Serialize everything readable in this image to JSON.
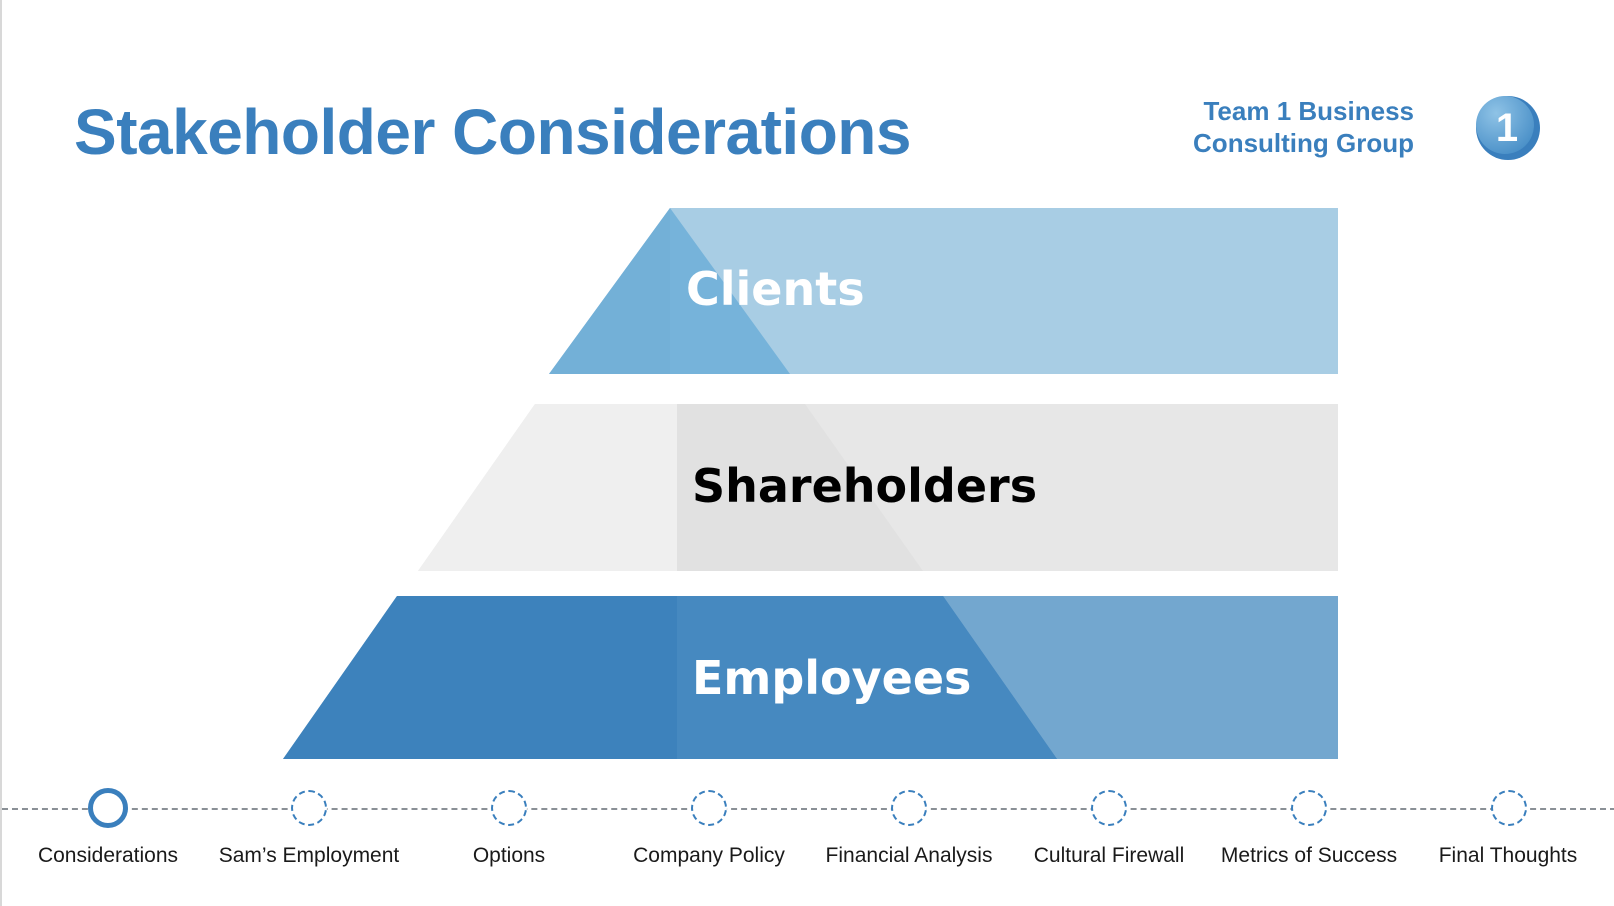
{
  "slide": {
    "title": "Stakeholder Considerations",
    "brand": {
      "line1": "Team 1 Business",
      "line2": "Consulting Group",
      "logo_text": "1",
      "logo_icon": "numbered-circle-logo"
    }
  },
  "pyramid": {
    "tiers": [
      {
        "label": "Clients",
        "color": "#a8cde4",
        "accent": "#76b3da",
        "text_color": "#ffffff"
      },
      {
        "label": "Shareholders",
        "color": "#e7e7e7",
        "accent": "#dcdcdc",
        "text_color": "#000000"
      },
      {
        "label": "Employees",
        "color": "#73a7cf",
        "accent": "#3a7fbd",
        "text_color": "#ffffff"
      }
    ]
  },
  "timeline": {
    "active_index": 0,
    "accent": "#3a7fbd",
    "items": [
      {
        "label": "Considerations"
      },
      {
        "label": "Sam’s Employment"
      },
      {
        "label": "Options"
      },
      {
        "label": "Company Policy"
      },
      {
        "label": "Financial Analysis"
      },
      {
        "label": "Cultural Firewall"
      },
      {
        "label": "Metrics of Success"
      },
      {
        "label": "Final Thoughts"
      }
    ]
  }
}
